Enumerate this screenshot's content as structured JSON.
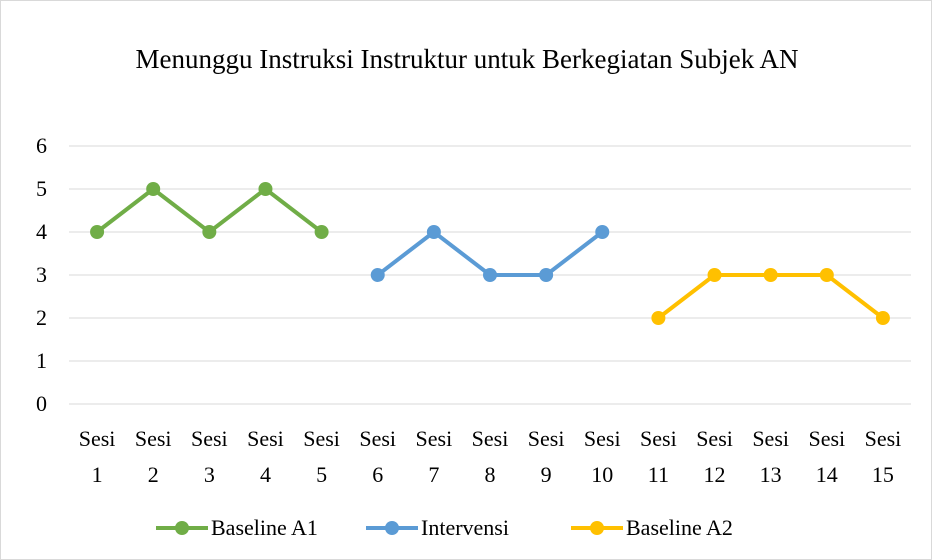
{
  "chart_data": {
    "type": "line",
    "title": "Menunggu Instruksi Instruktur untuk Berkegiatan Subjek AN",
    "categories": [
      "Sesi 1",
      "Sesi 2",
      "Sesi 3",
      "Sesi 4",
      "Sesi 5",
      "Sesi 6",
      "Sesi 7",
      "Sesi 8",
      "Sesi 9",
      "Sesi 10",
      "Sesi 11",
      "Sesi 12",
      "Sesi 13",
      "Sesi 14",
      "Sesi 15"
    ],
    "series": [
      {
        "name": "Baseline A1",
        "color": "#70ad47",
        "values": [
          4,
          5,
          4,
          5,
          4,
          null,
          null,
          null,
          null,
          null,
          null,
          null,
          null,
          null,
          null
        ]
      },
      {
        "name": "Intervensi",
        "color": "#5b9bd5",
        "values": [
          null,
          null,
          null,
          null,
          null,
          3,
          4,
          3,
          3,
          4,
          null,
          null,
          null,
          null,
          null
        ]
      },
      {
        "name": "Baseline A2",
        "color": "#ffc000",
        "values": [
          null,
          null,
          null,
          null,
          null,
          null,
          null,
          null,
          null,
          null,
          2,
          3,
          3,
          3,
          2
        ]
      }
    ],
    "ylim": [
      0,
      6
    ],
    "yticks": [
      0,
      1,
      2,
      3,
      4,
      5,
      6
    ],
    "grid": true,
    "legend": "bottom"
  }
}
